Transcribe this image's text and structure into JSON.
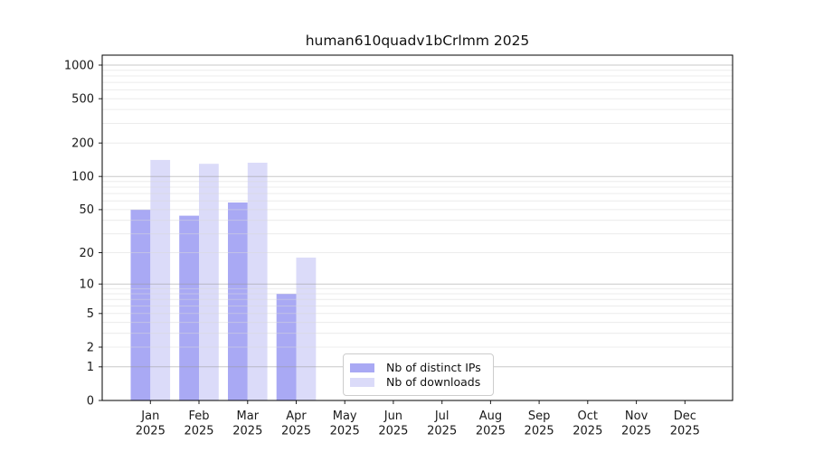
{
  "chart_data": {
    "type": "bar",
    "title": "human610quadv1bCrlmm 2025",
    "categories": [
      "Jan",
      "Feb",
      "Mar",
      "Apr",
      "May",
      "Jun",
      "Jul",
      "Aug",
      "Sep",
      "Oct",
      "Nov",
      "Dec"
    ],
    "category_year": "2025",
    "series": [
      {
        "name": "Nb of distinct IPs",
        "color": "#a9a9f4",
        "values": [
          50,
          44,
          58,
          8,
          0,
          0,
          0,
          0,
          0,
          0,
          0,
          0
        ]
      },
      {
        "name": "Nb of downloads",
        "color": "#dbdbf9",
        "values": [
          141,
          130,
          133,
          18,
          0,
          0,
          0,
          0,
          0,
          0,
          0,
          0
        ]
      }
    ],
    "xlabel": "",
    "ylabel": "",
    "yscale": "log1p",
    "yticks": [
      0,
      1,
      2,
      5,
      10,
      20,
      50,
      100,
      200,
      500,
      1000
    ],
    "ylim": [
      0,
      1230
    ],
    "grid": "horizontal major (1,10,100,1000) + log minor lines",
    "legend_position": "inside lower center"
  }
}
